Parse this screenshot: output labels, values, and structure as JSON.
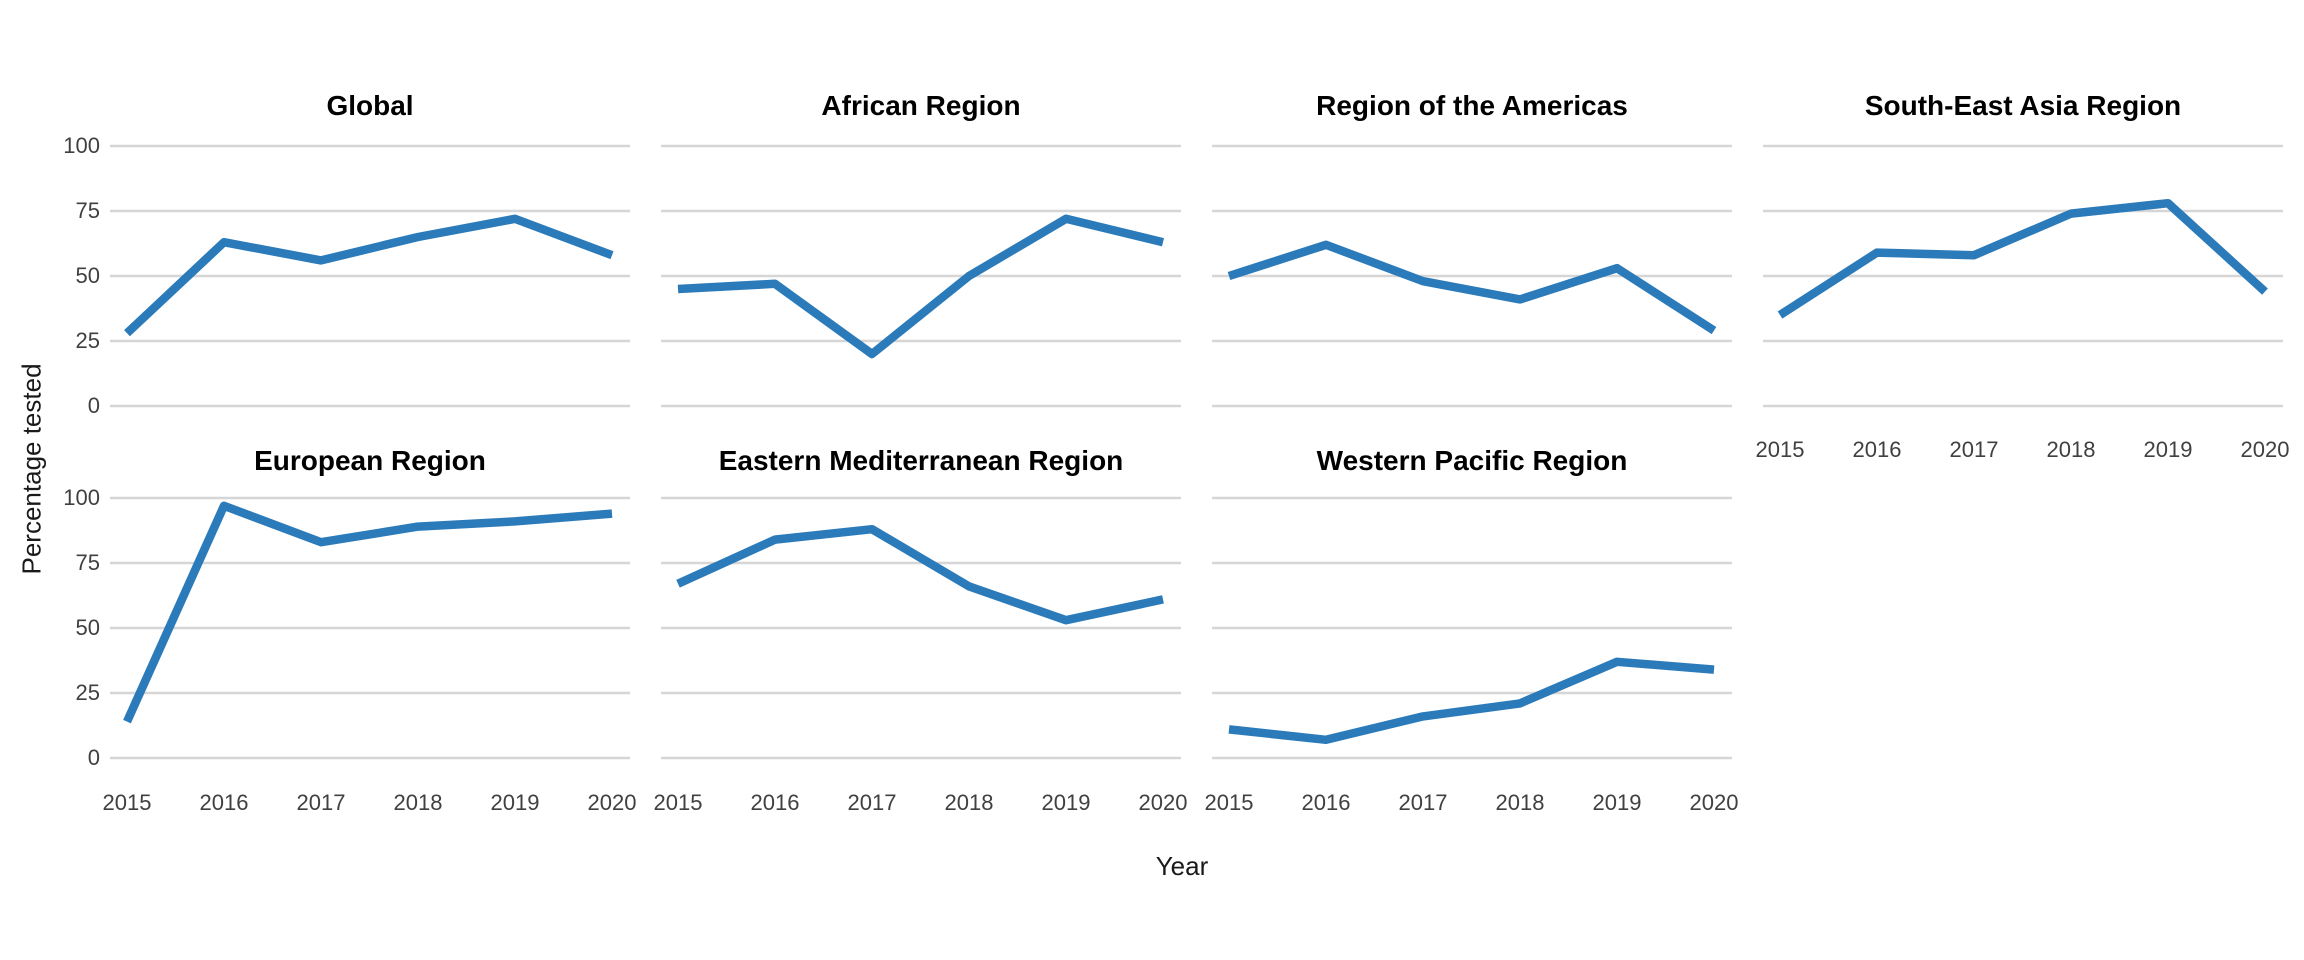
{
  "figure": {
    "background": "#ffffff",
    "line_color": "#2b7bba",
    "gridline_color": "#d6d6d6",
    "tick_label_color": "#404040",
    "facet_title_color": "#000000"
  },
  "chart_data": {
    "type": "line",
    "title": "",
    "xlabel": "Year",
    "ylabel": "Percentage tested",
    "x": [
      "2015",
      "2016",
      "2017",
      "2018",
      "2019",
      "2020"
    ],
    "y_ticks": [
      "0",
      "25",
      "50",
      "75",
      "100"
    ],
    "ylim": [
      0,
      100
    ],
    "grid": "horizontal-major-only",
    "legend": "none",
    "facets": [
      {
        "title": "Global",
        "row": 0,
        "col": 0,
        "show_x_labels": false,
        "values": [
          28,
          63,
          56,
          65,
          72,
          58
        ]
      },
      {
        "title": "African Region",
        "row": 0,
        "col": 1,
        "show_x_labels": false,
        "values": [
          45,
          47,
          20,
          50,
          72,
          63
        ]
      },
      {
        "title": "Region of the Americas",
        "row": 0,
        "col": 2,
        "show_x_labels": false,
        "values": [
          50,
          62,
          48,
          41,
          53,
          29
        ]
      },
      {
        "title": "South-East Asia Region",
        "row": 0,
        "col": 3,
        "show_x_labels": true,
        "values": [
          35,
          59,
          58,
          74,
          78,
          44
        ]
      },
      {
        "title": "European Region",
        "row": 1,
        "col": 0,
        "show_x_labels": true,
        "values": [
          14,
          97,
          83,
          89,
          91,
          94
        ]
      },
      {
        "title": "Eastern Mediterranean Region",
        "row": 1,
        "col": 1,
        "show_x_labels": true,
        "values": [
          67,
          84,
          88,
          66,
          53,
          61
        ]
      },
      {
        "title": "Western Pacific Region",
        "row": 1,
        "col": 2,
        "show_x_labels": true,
        "values": [
          11,
          7,
          16,
          21,
          37,
          34
        ]
      }
    ]
  }
}
